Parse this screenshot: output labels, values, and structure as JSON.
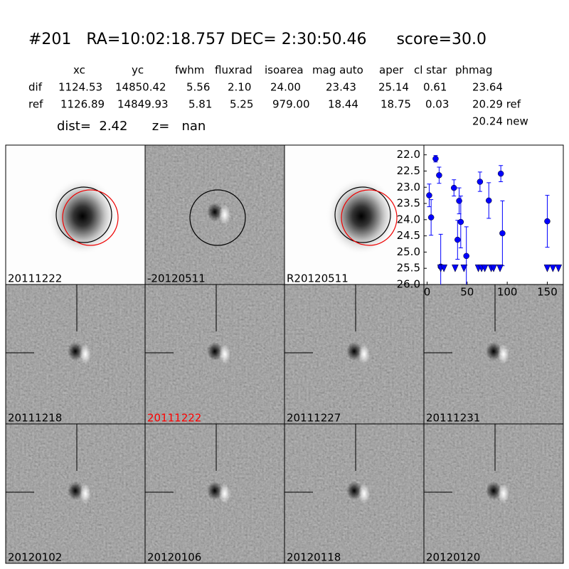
{
  "header": {
    "title": "#201   RA=10:02:18.757 DEC= 2:30:50.46      score=30.0"
  },
  "table": {
    "columns": [
      "xc",
      "yc",
      "fwhm",
      "fluxrad",
      "isoarea",
      "mag auto",
      "aper",
      "cl star",
      "phmag"
    ],
    "rows": [
      [
        "dif",
        "1124.53",
        "14850.42",
        "5.56",
        "2.10",
        "24.00",
        "23.43",
        "25.14",
        "0.61",
        "23.64"
      ],
      [
        "ref",
        "1126.89",
        "14849.93",
        "5.81",
        "5.25",
        "979.00",
        "18.44",
        "18.75",
        "0.03",
        "20.29 ref"
      ]
    ],
    "extra": "20.24 new"
  },
  "summary": "dist=  2.42      z=   nan",
  "stamps": [
    {
      "label": "20111222"
    },
    {
      "label": "-20120511"
    },
    {
      "label": "R20120511"
    },
    {
      "label": "20111218"
    },
    {
      "label": "20111222",
      "color": "#ff0000"
    },
    {
      "label": "20111227"
    },
    {
      "label": "20111231"
    },
    {
      "label": "20120102"
    },
    {
      "label": "20120106"
    },
    {
      "label": "20120118"
    },
    {
      "label": "20120120"
    }
  ],
  "chart_data": {
    "type": "scatter",
    "xlim": [
      -4,
      170
    ],
    "ylim": [
      26.0,
      21.7
    ],
    "xticks": [
      0,
      50,
      100,
      150
    ],
    "yticks": [
      {
        "value": 22,
        "label": "22.0"
      },
      {
        "value": 22.5,
        "label": "22.5"
      },
      {
        "value": 23,
        "label": "23.0"
      },
      {
        "value": 23.5,
        "label": "23.5"
      },
      {
        "value": 24,
        "label": "24.0"
      },
      {
        "value": 24.5,
        "label": "24.5"
      },
      {
        "value": 25,
        "label": "25.0"
      },
      {
        "value": 25.5,
        "label": "25.5"
      },
      {
        "value": 26,
        "label": "26.0"
      }
    ],
    "series": [
      {
        "marker": "circle",
        "color": "#0000ff",
        "x": [
          2.6,
          5,
          10.6,
          15,
          17,
          33.5,
          38,
          40,
          42,
          49,
          66,
          77,
          92,
          94,
          150
        ],
        "values": [
          23.25,
          23.93,
          22.12,
          22.63,
          25.45,
          23.02,
          24.62,
          23.42,
          24.07,
          25.12,
          22.83,
          23.41,
          22.58,
          24.42,
          24.05
        ],
        "errors": [
          0.35,
          0.55,
          0.1,
          0.25,
          1.0,
          0.25,
          0.6,
          0.4,
          0.8,
          0.9,
          0.3,
          0.55,
          0.25,
          1.0,
          0.8
        ]
      },
      {
        "marker": "triangle-down",
        "color": "#0000ff",
        "x": [
          17,
          21,
          35,
          46,
          64,
          68,
          72,
          80,
          83,
          91,
          150,
          157,
          164
        ],
        "values": [
          25.5,
          25.5,
          25.5,
          25.5,
          25.5,
          25.5,
          25.5,
          25.5,
          25.5,
          25.5,
          25.5,
          25.5,
          25.5
        ]
      }
    ]
  }
}
